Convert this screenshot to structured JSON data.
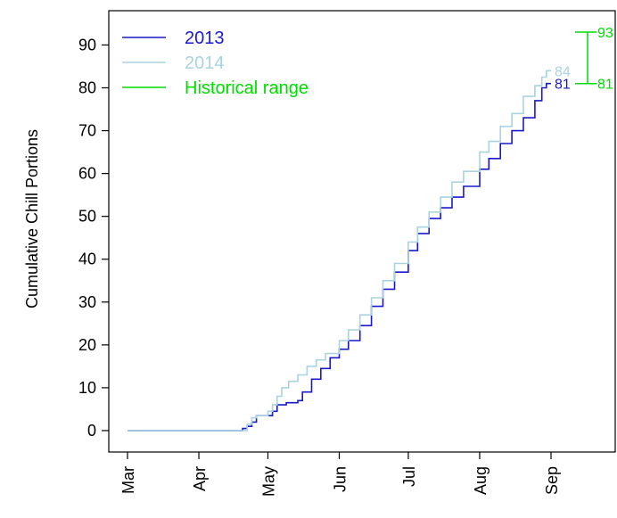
{
  "chart_data": {
    "type": "line",
    "ylabel": "Cumulative Chill Portions",
    "xlabel": "",
    "ylim": [
      -5,
      98
    ],
    "x_ticks": [
      "Mar",
      "Apr",
      "May",
      "Jun",
      "Jul",
      "Aug",
      "Sep"
    ],
    "y_ticks": [
      0,
      10,
      20,
      30,
      40,
      50,
      60,
      70,
      80,
      90
    ],
    "legend": {
      "placement": "top-left"
    },
    "series": [
      {
        "name": "2013",
        "color": "#1a1acc",
        "end_label": "81",
        "points": [
          [
            "03-01",
            0
          ],
          [
            "04-19",
            0
          ],
          [
            "04-20",
            0.5
          ],
          [
            "04-22",
            1
          ],
          [
            "04-24",
            2
          ],
          [
            "04-26",
            3.5
          ],
          [
            "05-01",
            3.5
          ],
          [
            "05-03",
            4.5
          ],
          [
            "05-05",
            6
          ],
          [
            "05-09",
            6.5
          ],
          [
            "05-14",
            7
          ],
          [
            "05-16",
            9
          ],
          [
            "05-20",
            12
          ],
          [
            "05-24",
            14.5
          ],
          [
            "05-28",
            17
          ],
          [
            "06-01",
            19
          ],
          [
            "06-05",
            21
          ],
          [
            "06-10",
            24.5
          ],
          [
            "06-15",
            29
          ],
          [
            "06-20",
            33
          ],
          [
            "06-25",
            37
          ],
          [
            "07-01",
            42
          ],
          [
            "07-05",
            46
          ],
          [
            "07-10",
            49.5
          ],
          [
            "07-15",
            52
          ],
          [
            "07-20",
            54.5
          ],
          [
            "07-25",
            57
          ],
          [
            "08-01",
            61
          ],
          [
            "08-05",
            63.5
          ],
          [
            "08-10",
            67
          ],
          [
            "08-15",
            70
          ],
          [
            "08-20",
            73
          ],
          [
            "08-25",
            77
          ],
          [
            "08-28",
            80
          ],
          [
            "08-30",
            81
          ],
          [
            "09-01",
            81
          ]
        ]
      },
      {
        "name": "2014",
        "color": "#a9d3e0",
        "end_label": "84",
        "points": [
          [
            "03-01",
            0
          ],
          [
            "04-21",
            0
          ],
          [
            "04-22",
            1.5
          ],
          [
            "04-24",
            3
          ],
          [
            "04-26",
            3.5
          ],
          [
            "04-29",
            3.5
          ],
          [
            "05-01",
            4.5
          ],
          [
            "05-03",
            6
          ],
          [
            "05-05",
            8
          ],
          [
            "05-07",
            10
          ],
          [
            "05-10",
            11.5
          ],
          [
            "05-14",
            13
          ],
          [
            "05-18",
            15
          ],
          [
            "05-22",
            16.5
          ],
          [
            "05-26",
            18
          ],
          [
            "06-01",
            21
          ],
          [
            "06-05",
            23.5
          ],
          [
            "06-10",
            27
          ],
          [
            "06-15",
            31
          ],
          [
            "06-20",
            35
          ],
          [
            "06-25",
            39
          ],
          [
            "07-01",
            44
          ],
          [
            "07-05",
            47.5
          ],
          [
            "07-10",
            51
          ],
          [
            "07-15",
            54.5
          ],
          [
            "07-20",
            58
          ],
          [
            "07-25",
            60.5
          ],
          [
            "08-01",
            65
          ],
          [
            "08-05",
            67.5
          ],
          [
            "08-10",
            71
          ],
          [
            "08-15",
            74
          ],
          [
            "08-20",
            78
          ],
          [
            "08-25",
            80.5
          ],
          [
            "08-28",
            82.5
          ],
          [
            "08-30",
            84
          ],
          [
            "09-01",
            84
          ]
        ]
      }
    ],
    "historical_range": {
      "name": "Historical range",
      "color": "#00dd00",
      "min": 81,
      "max": 93,
      "min_label": "81",
      "max_label": "93"
    }
  }
}
